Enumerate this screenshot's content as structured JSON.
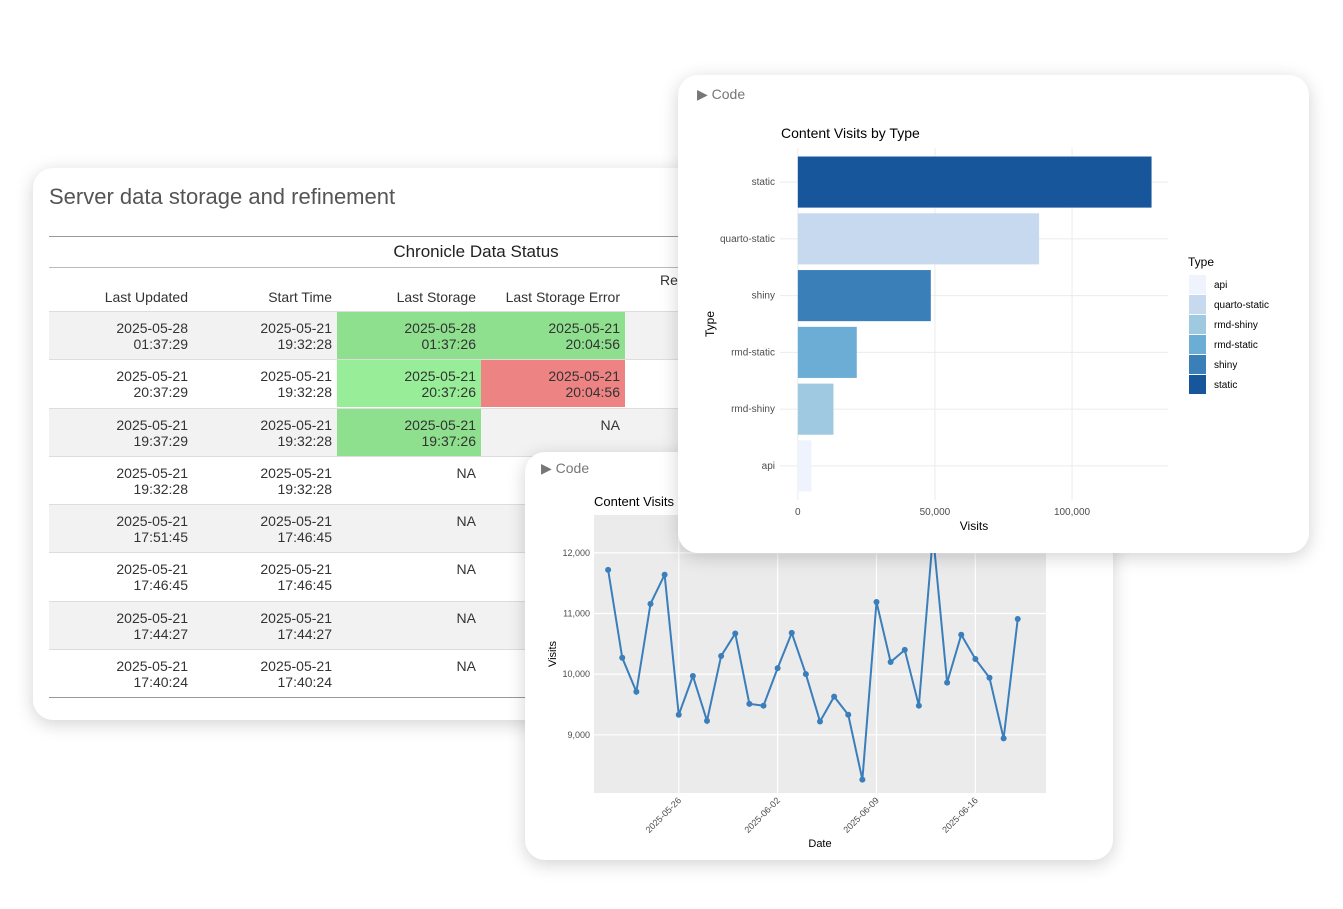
{
  "table_card": {
    "title": "Server data storage and refinement",
    "caption": "Chronicle Data Status",
    "columns": [
      "Last Updated",
      "Start Time",
      "Last Storage",
      "Last Storage Error"
    ],
    "spanning_header": "Re",
    "rows": [
      {
        "cells": [
          "2025-05-28\n01:37:29",
          "2025-05-21\n19:32:28",
          "2025-05-28\n01:37:26",
          "2025-05-21\n20:04:56"
        ],
        "fills": [
          null,
          null,
          "#8ee08e",
          "#8ee08e"
        ]
      },
      {
        "cells": [
          "2025-05-21\n20:37:29",
          "2025-05-21\n19:32:28",
          "2025-05-21\n20:37:26",
          "2025-05-21\n20:04:56"
        ],
        "fills": [
          null,
          null,
          "#98ee98",
          "#ee8383"
        ]
      },
      {
        "cells": [
          "2025-05-21\n19:37:29",
          "2025-05-21\n19:32:28",
          "2025-05-21\n19:37:26",
          "NA"
        ],
        "fills": [
          null,
          null,
          "#8ee08e",
          null
        ]
      },
      {
        "cells": [
          "2025-05-21\n19:32:28",
          "2025-05-21\n19:32:28",
          "NA"
        ],
        "fills": [
          null,
          null,
          null
        ]
      },
      {
        "cells": [
          "2025-05-21\n17:51:45",
          "2025-05-21\n17:46:45",
          "NA"
        ],
        "fills": [
          null,
          null,
          null
        ]
      },
      {
        "cells": [
          "2025-05-21\n17:46:45",
          "2025-05-21\n17:46:45",
          "NA"
        ],
        "fills": [
          null,
          null,
          null
        ]
      },
      {
        "cells": [
          "2025-05-21\n17:44:27",
          "2025-05-21\n17:44:27",
          "NA"
        ],
        "fills": [
          null,
          null,
          null
        ]
      },
      {
        "cells": [
          "2025-05-21\n17:40:24",
          "2025-05-21\n17:40:24",
          "NA"
        ],
        "fills": [
          null,
          null,
          null
        ]
      }
    ]
  },
  "code_toggles": [
    "Code",
    "Code"
  ],
  "chart_data": [
    {
      "type": "bar",
      "orientation": "horizontal",
      "title": "Content Visits by Type",
      "x_label": "Visits",
      "y_label": "Type",
      "categories": [
        "static",
        "quarto-static",
        "shiny",
        "rmd-static",
        "rmd-shiny",
        "api"
      ],
      "values": [
        129000,
        88000,
        48500,
        21500,
        13000,
        5000
      ],
      "colors": [
        "#17569a",
        "#c6d9ee",
        "#3a7fb8",
        "#6badd5",
        "#9ec9e1",
        "#eef3fd"
      ],
      "xlim": [
        -6500,
        135000
      ],
      "xticks": [
        0,
        {
          "value": 50000,
          "label": "50,000"
        },
        {
          "value": 100000,
          "label": "100,000"
        }
      ],
      "grid": true,
      "legend": {
        "title": "Type",
        "entries": [
          "api",
          "quarto-static",
          "rmd-shiny",
          "rmd-static",
          "shiny",
          "static"
        ],
        "colors": [
          "#eef3fd",
          "#c6d9ee",
          "#9ec9e1",
          "#6badd5",
          "#3a7fb8",
          "#17569a"
        ],
        "position": "right"
      }
    },
    {
      "type": "line",
      "title": "Content Visits",
      "x_label": "Date",
      "y_label": "Visits",
      "color": "#3a7ebb",
      "x": [
        "2025-05-21",
        "2025-05-22",
        "2025-05-23",
        "2025-05-24",
        "2025-05-25",
        "2025-05-26",
        "2025-05-27",
        "2025-05-28",
        "2025-05-29",
        "2025-05-30",
        "2025-05-31",
        "2025-06-01",
        "2025-06-02",
        "2025-06-03",
        "2025-06-04",
        "2025-06-05",
        "2025-06-06",
        "2025-06-07",
        "2025-06-08",
        "2025-06-09",
        "2025-06-10",
        "2025-06-11",
        "2025-06-12",
        "2025-06-13",
        "2025-06-14",
        "2025-06-15",
        "2025-06-16",
        "2025-06-17",
        "2025-06-18",
        "2025-06-19"
      ],
      "values": [
        11720,
        10270,
        9710,
        11160,
        11640,
        9330,
        9970,
        9230,
        10300,
        10670,
        9510,
        9480,
        10100,
        10680,
        10000,
        9220,
        9630,
        9330,
        8260,
        11190,
        10200,
        10400,
        9480,
        12300,
        9860,
        10650,
        10250,
        9940,
        8940,
        10910
      ],
      "xlim": [
        "2025-05-20",
        "2025-06-21"
      ],
      "xticks": [
        "2025-05-26",
        "2025-06-02",
        "2025-06-09",
        "2025-06-16"
      ],
      "ylim": [
        8040,
        12625
      ],
      "yticks": [
        {
          "value": 9000,
          "label": "9,000"
        },
        {
          "value": 10000,
          "label": "10,000"
        },
        {
          "value": 11000,
          "label": "11,000"
        },
        {
          "value": 12000,
          "label": "12,000"
        }
      ],
      "grid": true
    }
  ]
}
